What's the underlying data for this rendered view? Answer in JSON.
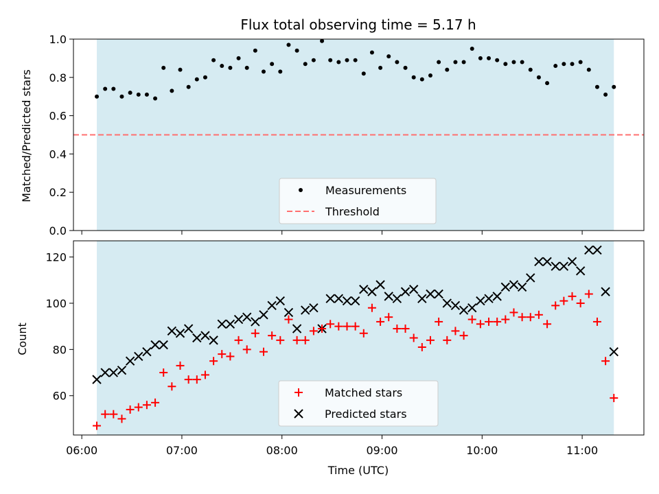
{
  "chart_data": [
    {
      "type": "scatter",
      "title": "Flux total observing time = 5.17 h",
      "ylabel": "Matched/Predicted stars",
      "xlabel": "",
      "ylim": [
        0,
        1.0
      ],
      "yticks": [
        "0.0",
        "0.2",
        "0.4",
        "0.6",
        "0.8",
        "1.0"
      ],
      "shaded_span": [
        "06:09",
        "11:19"
      ],
      "threshold": 0.5,
      "legend": {
        "placement": "bottom-center",
        "entries": [
          "Measurements",
          "Threshold"
        ]
      },
      "series": [
        {
          "name": "Measurements",
          "marker": "dot",
          "color": "#000000",
          "x": [
            "06:09",
            "06:14",
            "06:19",
            "06:24",
            "06:29",
            "06:34",
            "06:39",
            "06:44",
            "06:49",
            "06:54",
            "06:59",
            "07:04",
            "07:09",
            "07:14",
            "07:19",
            "07:24",
            "07:29",
            "07:34",
            "07:39",
            "07:44",
            "07:49",
            "07:54",
            "07:59",
            "08:04",
            "08:09",
            "08:14",
            "08:19",
            "08:24",
            "08:29",
            "08:34",
            "08:39",
            "08:44",
            "08:49",
            "08:54",
            "08:59",
            "09:04",
            "09:09",
            "09:14",
            "09:19",
            "09:24",
            "09:29",
            "09:34",
            "09:39",
            "09:44",
            "09:49",
            "09:54",
            "09:59",
            "10:04",
            "10:09",
            "10:14",
            "10:19",
            "10:24",
            "10:29",
            "10:34",
            "10:39",
            "10:44",
            "10:49",
            "10:54",
            "10:59",
            "11:04",
            "11:09",
            "11:14",
            "11:19"
          ],
          "values": [
            0.7,
            0.74,
            0.74,
            0.7,
            0.72,
            0.71,
            0.71,
            0.69,
            0.85,
            0.73,
            0.84,
            0.75,
            0.79,
            0.8,
            0.89,
            0.86,
            0.85,
            0.9,
            0.85,
            0.94,
            0.83,
            0.87,
            0.83,
            0.97,
            0.94,
            0.87,
            0.89,
            0.99,
            0.89,
            0.88,
            0.89,
            0.89,
            0.82,
            0.93,
            0.85,
            0.91,
            0.88,
            0.85,
            0.8,
            0.79,
            0.81,
            0.88,
            0.84,
            0.88,
            0.88,
            0.95,
            0.9,
            0.9,
            0.89,
            0.87,
            0.88,
            0.88,
            0.84,
            0.8,
            0.77,
            0.86,
            0.87,
            0.87,
            0.88,
            0.84,
            0.75,
            0.71,
            0.75
          ]
        },
        {
          "name": "Threshold",
          "style": "dashed",
          "color": "#ff6f6f",
          "value": 0.5
        }
      ]
    },
    {
      "type": "scatter",
      "title": "",
      "ylabel": "Count",
      "xlabel": "Time (UTC)",
      "ylim": [
        43,
        127
      ],
      "yticks": [
        "60",
        "80",
        "100",
        "120"
      ],
      "xlim": [
        "05:55",
        "11:37"
      ],
      "xticks": [
        "06:00",
        "07:00",
        "08:00",
        "09:00",
        "10:00",
        "11:00"
      ],
      "shaded_span": [
        "06:09",
        "11:19"
      ],
      "legend": {
        "placement": "bottom-center",
        "entries": [
          "Matched stars",
          "Predicted stars"
        ]
      },
      "series": [
        {
          "name": "Matched stars",
          "marker": "plus",
          "color": "#ff0000",
          "values": [
            47,
            52,
            52,
            50,
            54,
            55,
            56,
            57,
            70,
            64,
            73,
            67,
            67,
            69,
            75,
            78,
            77,
            84,
            80,
            87,
            79,
            86,
            84,
            93,
            84,
            84,
            88,
            89,
            91,
            90,
            90,
            90,
            87,
            98,
            92,
            94,
            89,
            89,
            85,
            81,
            84,
            92,
            84,
            88,
            86,
            93,
            91,
            92,
            92,
            93,
            96,
            94,
            94,
            95,
            91,
            99,
            101,
            103,
            100,
            104,
            92,
            75,
            59
          ]
        },
        {
          "name": "Predicted stars",
          "marker": "cross",
          "color": "#000000",
          "values": [
            67,
            70,
            70,
            71,
            75,
            77,
            79,
            82,
            82,
            88,
            87,
            89,
            85,
            86,
            84,
            91,
            91,
            93,
            94,
            92,
            95,
            99,
            101,
            96,
            89,
            97,
            98,
            89,
            102,
            102,
            101,
            101,
            106,
            105,
            108,
            103,
            102,
            105,
            106,
            102,
            104,
            104,
            100,
            99,
            97,
            98,
            101,
            102,
            103,
            107,
            108,
            107,
            111,
            118,
            118,
            116,
            116,
            118,
            114,
            123,
            123,
            105,
            79
          ]
        }
      ]
    }
  ]
}
